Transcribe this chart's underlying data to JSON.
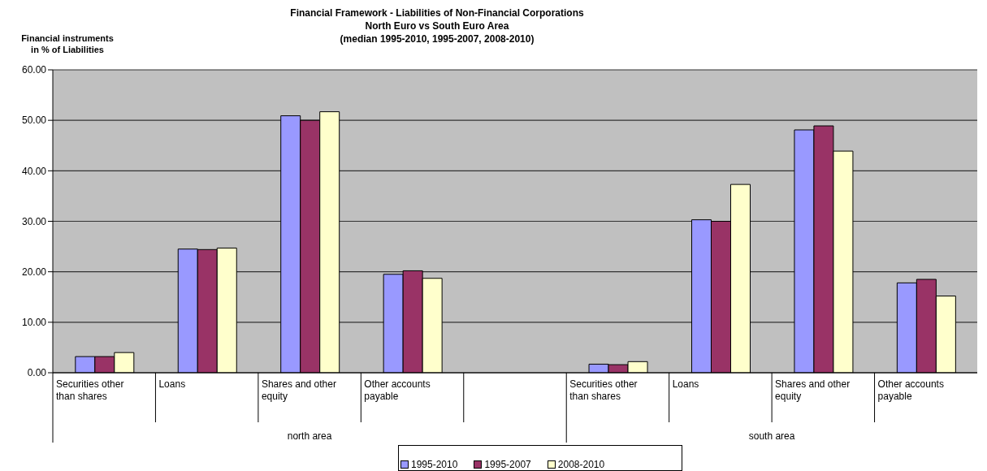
{
  "chart_data": {
    "type": "bar",
    "title": "Financial Framework - Liabilities of Non-Financial Corporations\nNorth Euro vs South Euro Area\n(median 1995-2010, 1995-2007, 2008-2010)",
    "ylabel": "Financial instruments\nin % of Liabilities",
    "categories": [
      "Securities other than shares",
      "Loans",
      "Shares and other equity",
      "Other accounts payable",
      null,
      "Securities other than shares",
      "Loans",
      "Shares and other equity",
      "Other accounts payable"
    ],
    "series": [
      {
        "name": "1995-2010",
        "color": "#9999ff",
        "values": [
          3.2,
          24.5,
          50.9,
          19.5,
          null,
          1.7,
          30.3,
          48.1,
          17.8
        ]
      },
      {
        "name": "1995-2007",
        "color": "#993366",
        "values": [
          3.2,
          24.4,
          50.0,
          20.2,
          null,
          1.6,
          30.0,
          48.9,
          18.5
        ]
      },
      {
        "name": "2008-2010",
        "color": "#ffffcc",
        "values": [
          4.0,
          24.7,
          51.7,
          18.7,
          null,
          2.2,
          37.3,
          43.9,
          15.2
        ]
      }
    ],
    "ylim": [
      0,
      60
    ],
    "yticks": [
      {
        "value": 0,
        "label": "0.00"
      },
      {
        "value": 10,
        "label": "10.00"
      },
      {
        "value": 20,
        "label": "20.00"
      },
      {
        "value": 30,
        "label": "30.00"
      },
      {
        "value": 40,
        "label": "40.00"
      },
      {
        "value": 50,
        "label": "50.00"
      },
      {
        "value": 60,
        "label": "60.00"
      }
    ],
    "grid": "y",
    "legend": "bottom",
    "annotations": [
      "north area",
      "south area"
    ]
  }
}
